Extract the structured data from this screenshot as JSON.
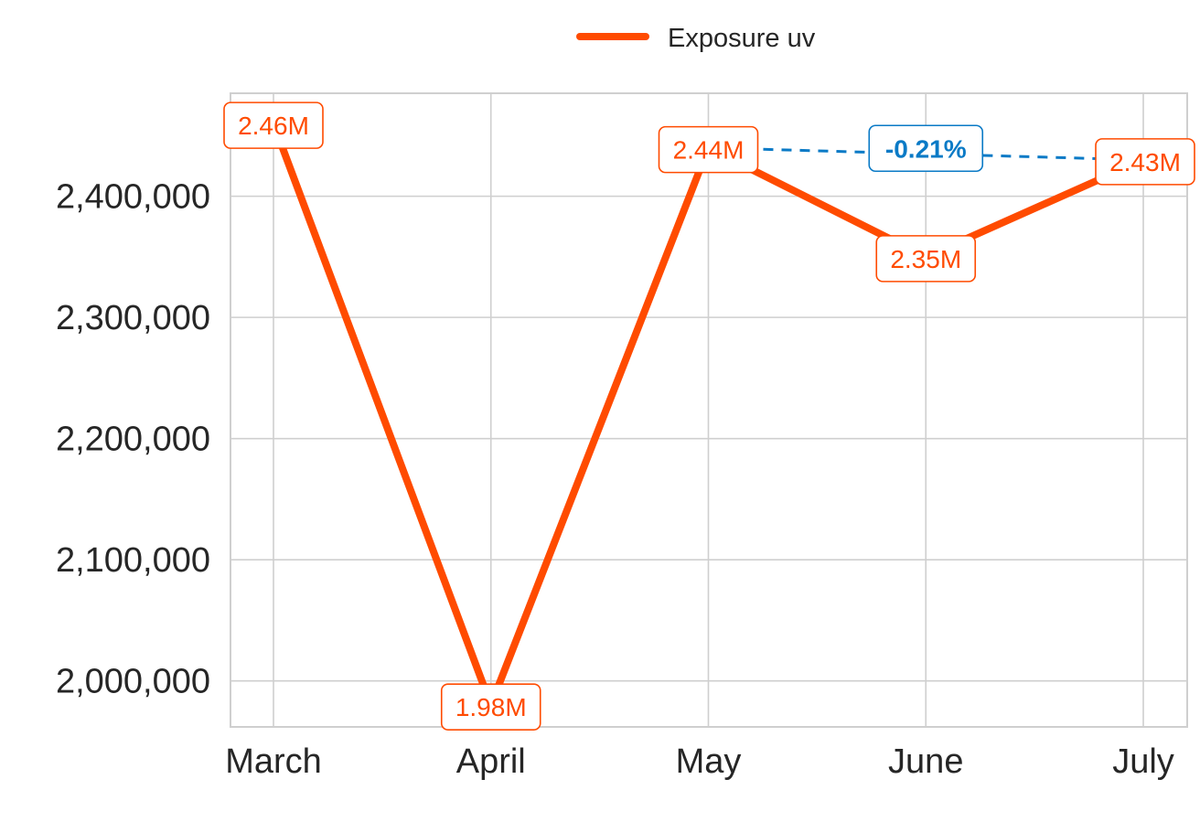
{
  "colors": {
    "series": "#ff4b00",
    "annotation": "#0a7ac6",
    "grid": "#cfcfcf",
    "text": "#262626",
    "background": "#ffffff"
  },
  "chart_data": {
    "type": "line",
    "title": "",
    "xlabel": "",
    "ylabel": "",
    "categories": [
      "March",
      "April",
      "May",
      "June",
      "July"
    ],
    "series": [
      {
        "name": "Exposure uv",
        "values": [
          2460000,
          1980000,
          2440000,
          2350000,
          2430000
        ],
        "data_labels": [
          "2.46M",
          "1.98M",
          "2.44M",
          "2.35M",
          "2.43M"
        ]
      }
    ],
    "yticks": [
      2000000,
      2100000,
      2200000,
      2300000,
      2400000
    ],
    "ytick_labels": [
      "2,000,000",
      "2,100,000",
      "2,200,000",
      "2,300,000",
      "2,400,000"
    ],
    "ylim": [
      1962000,
      2485000
    ],
    "grid": true,
    "legend": {
      "position": "top-center",
      "entries": [
        "Exposure uv"
      ]
    },
    "annotations": [
      {
        "type": "change",
        "from": "May",
        "to": "July",
        "label": "-0.21%",
        "style": "dashed"
      }
    ]
  }
}
